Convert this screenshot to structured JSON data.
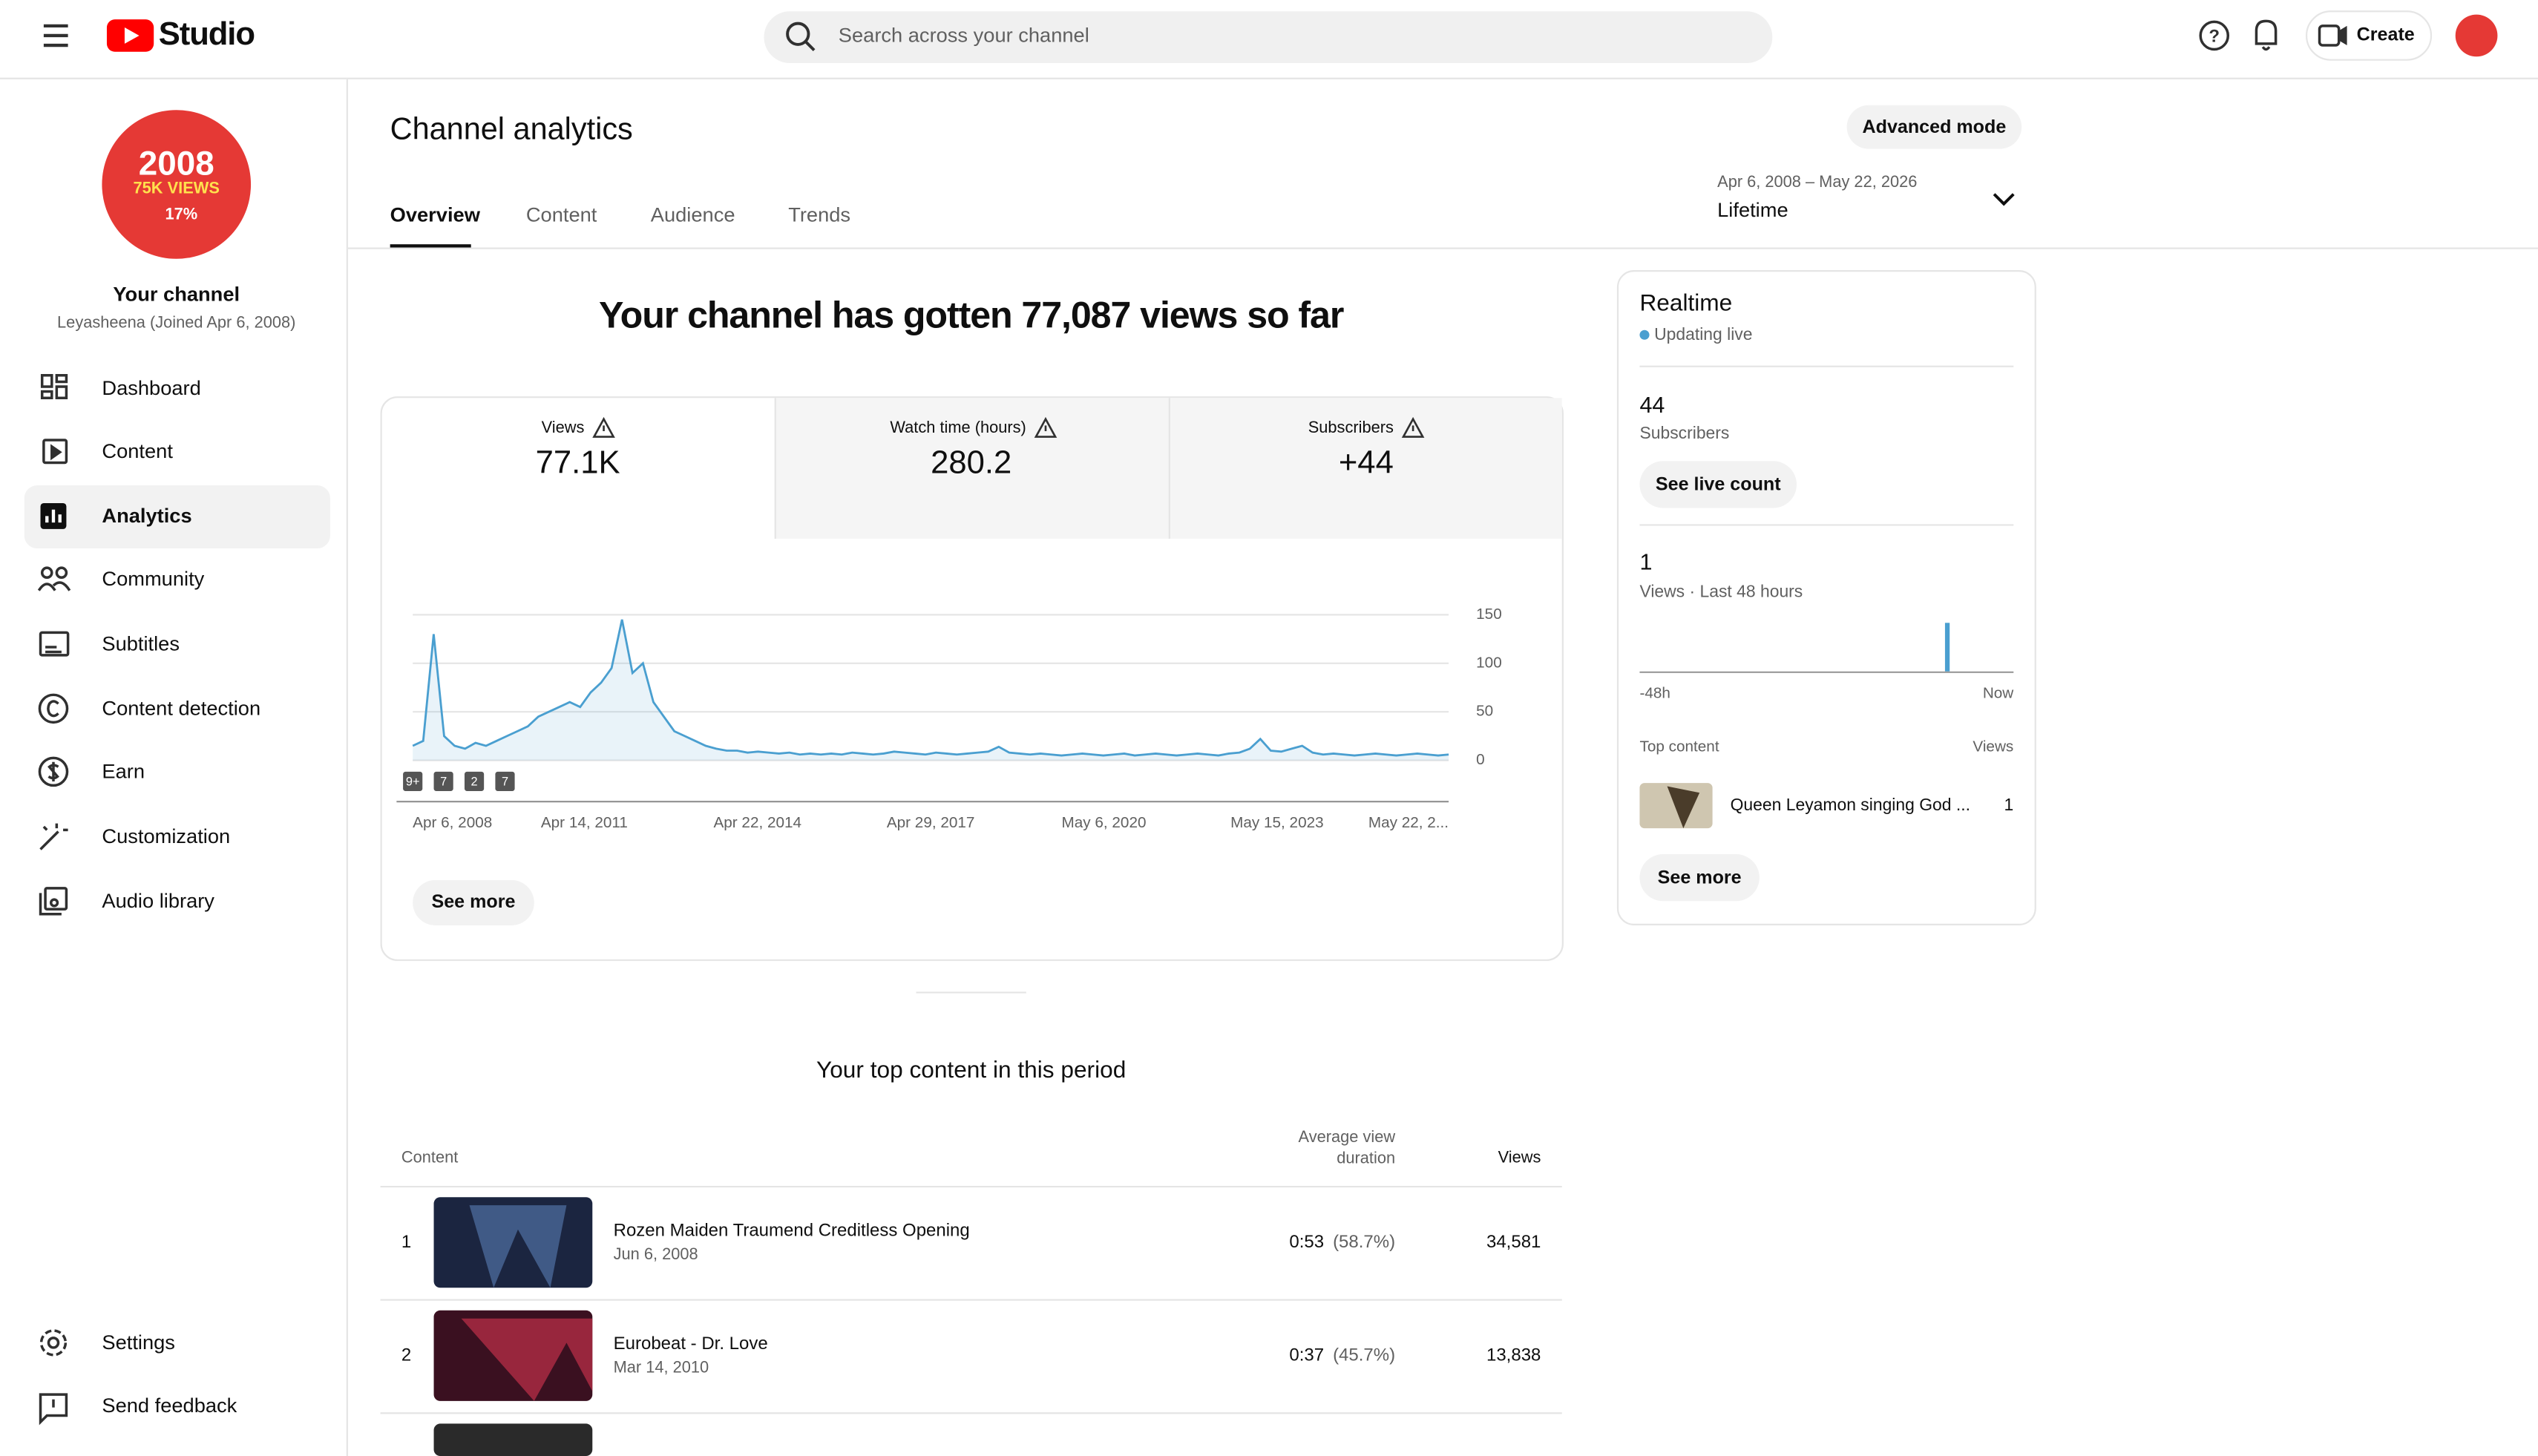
{
  "header": {
    "logo": "Studio",
    "search_placeholder": "Search across your channel",
    "create": "Create"
  },
  "sidebar": {
    "avatar": {
      "line1": "2008",
      "line2": "75K VIEWS",
      "line3": "17%"
    },
    "channel_title": "Your channel",
    "channel_subtitle": "Leyasheena (Joined Apr 6, 2008)",
    "nav": [
      "Dashboard",
      "Content",
      "Analytics",
      "Community",
      "Subtitles",
      "Content detection",
      "Earn",
      "Customization",
      "Audio library"
    ],
    "footer_nav": [
      "Settings",
      "Send feedback"
    ]
  },
  "page": {
    "title": "Channel analytics",
    "advanced_mode": "Advanced mode",
    "tabs": [
      "Overview",
      "Content",
      "Audience",
      "Trends"
    ],
    "date_range": "Apr 6, 2008 – May 22, 2026",
    "period": "Lifetime"
  },
  "overview": {
    "headline": "Your channel has gotten 77,087 views so far",
    "metrics": [
      {
        "label": "Views",
        "value": "77.1K"
      },
      {
        "label": "Watch time (hours)",
        "value": "280.2"
      },
      {
        "label": "Subscribers",
        "value": "+44"
      }
    ],
    "markers": [
      "9+",
      "7",
      "2",
      "7"
    ],
    "see_more": "See more"
  },
  "chart_data": {
    "type": "line",
    "color": "#4a9fd0",
    "ylim": [
      0,
      150
    ],
    "yticks": [
      0,
      50,
      100,
      150
    ],
    "grid": true,
    "x_labels": [
      "Apr 6, 2008",
      "Apr 14, 2011",
      "Apr 22, 2014",
      "Apr 29, 2017",
      "May 6, 2020",
      "May 15, 2023",
      "May 22, 2..."
    ],
    "values": [
      15,
      20,
      130,
      25,
      15,
      12,
      18,
      15,
      20,
      25,
      30,
      35,
      45,
      50,
      55,
      60,
      55,
      70,
      80,
      95,
      145,
      90,
      100,
      60,
      45,
      30,
      25,
      20,
      15,
      12,
      10,
      10,
      8,
      9,
      8,
      7,
      8,
      6,
      7,
      6,
      7,
      6,
      8,
      7,
      6,
      7,
      9,
      8,
      7,
      6,
      8,
      7,
      6,
      7,
      8,
      9,
      14,
      8,
      7,
      6,
      7,
      6,
      5,
      6,
      7,
      6,
      5,
      6,
      7,
      5,
      6,
      7,
      6,
      5,
      6,
      7,
      6,
      5,
      7,
      8,
      12,
      22,
      10,
      9,
      12,
      15,
      8,
      6,
      7,
      6,
      5,
      6,
      7,
      6,
      5,
      6,
      7,
      6,
      5,
      6
    ]
  },
  "realtime": {
    "title": "Realtime",
    "status": "Updating live",
    "subscribers": "44",
    "subscribers_label": "Subscribers",
    "see_live_count": "See live count",
    "views": "1",
    "views_label": "Views · Last 48 hours",
    "chart": {
      "type": "bar",
      "color": "#4a9fd0",
      "values": [
        0,
        0,
        0,
        0,
        0,
        0,
        0,
        0,
        0,
        0,
        0,
        0,
        0,
        0,
        0,
        0,
        0,
        0,
        0,
        0,
        0,
        0,
        0,
        0,
        0,
        0,
        0,
        0,
        0,
        0,
        0,
        0,
        0,
        0,
        0,
        0,
        0,
        0,
        0,
        1,
        0,
        0,
        0,
        0,
        0,
        0,
        0,
        0
      ],
      "x_start": "-48h",
      "x_end": "Now"
    },
    "top_content_label": "Top content",
    "views_col": "Views",
    "top_item": {
      "title": "Queen Leyamon singing God ...",
      "views": "1"
    },
    "see_more": "See more"
  },
  "top_content": {
    "title": "Your top content in this period",
    "columns": [
      "Content",
      "Average view duration",
      "Views"
    ],
    "rows": [
      {
        "rank": "1",
        "title": "Rozen Maiden Traumend Creditless Opening",
        "date": "Jun 6, 2008",
        "duration": "0:53",
        "percent": "(58.7%)",
        "views": "34,581"
      },
      {
        "rank": "2",
        "title": "Eurobeat - Dr. Love",
        "date": "Mar 14, 2010",
        "duration": "0:37",
        "percent": "(45.7%)",
        "views": "13,838"
      }
    ]
  }
}
